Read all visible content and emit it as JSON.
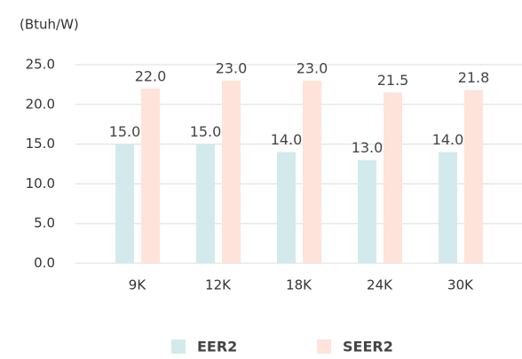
{
  "chart_data": {
    "type": "bar",
    "y_label": "(Btuh/W)",
    "categories": [
      "9K",
      "12K",
      "18K",
      "24K",
      "30K"
    ],
    "series": [
      {
        "name": "EER2",
        "color": "#d3eaec",
        "values": [
          15,
          15,
          14,
          13,
          14
        ],
        "value_labels": [
          "15.0",
          "15.0",
          "14.0",
          "13.0",
          "14.0"
        ]
      },
      {
        "name": "SEER2",
        "color": "#fde3d9",
        "values": [
          22,
          23,
          23,
          21.5,
          21.8
        ],
        "value_labels": [
          "22.0",
          "23.0",
          "23.0",
          "21.5",
          "21.8"
        ]
      }
    ],
    "ylim": [
      0,
      25
    ],
    "yticks": [
      {
        "value": 0,
        "label": "0.0"
      },
      {
        "value": 5,
        "label": "5.0"
      },
      {
        "value": 10,
        "label": "10.0"
      },
      {
        "value": 15,
        "label": "15.0"
      },
      {
        "value": 20,
        "label": "20.0"
      },
      {
        "value": 25,
        "label": "25.0"
      }
    ],
    "grid": true,
    "legend": "bottom"
  }
}
